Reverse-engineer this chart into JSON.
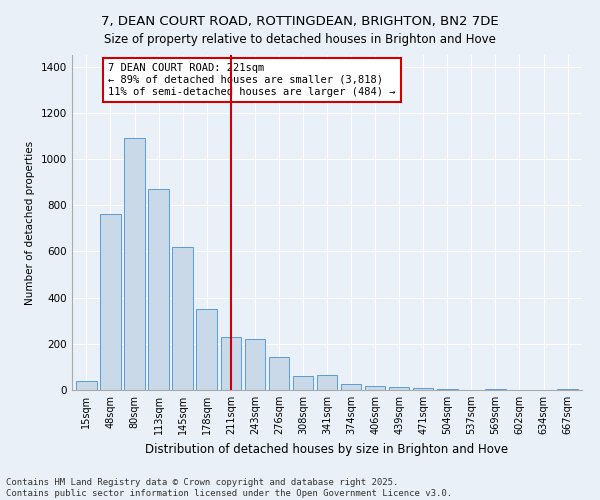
{
  "title1": "7, DEAN COURT ROAD, ROTTINGDEAN, BRIGHTON, BN2 7DE",
  "title2": "Size of property relative to detached houses in Brighton and Hove",
  "xlabel": "Distribution of detached houses by size in Brighton and Hove",
  "ylabel": "Number of detached properties",
  "categories": [
    "15sqm",
    "48sqm",
    "80sqm",
    "113sqm",
    "145sqm",
    "178sqm",
    "211sqm",
    "243sqm",
    "276sqm",
    "308sqm",
    "341sqm",
    "374sqm",
    "406sqm",
    "439sqm",
    "471sqm",
    "504sqm",
    "537sqm",
    "569sqm",
    "602sqm",
    "634sqm",
    "667sqm"
  ],
  "values": [
    40,
    760,
    1090,
    870,
    620,
    350,
    230,
    220,
    145,
    60,
    65,
    25,
    18,
    12,
    10,
    5,
    2,
    5,
    1,
    1,
    5
  ],
  "bar_color": "#c9d9e8",
  "bar_edge_color": "#5b9bd5",
  "bar_width": 0.85,
  "vline_x_index": 6,
  "vline_color": "#cc0000",
  "annotation_text": "7 DEAN COURT ROAD: 221sqm\n← 89% of detached houses are smaller (3,818)\n11% of semi-detached houses are larger (484) →",
  "annotation_box_color": "#ffffff",
  "annotation_box_edge_color": "#cc0000",
  "ylim": [
    0,
    1450
  ],
  "yticks": [
    0,
    200,
    400,
    600,
    800,
    1000,
    1200,
    1400
  ],
  "background_color": "#eaf0f8",
  "grid_color": "#ffffff",
  "footer": "Contains HM Land Registry data © Crown copyright and database right 2025.\nContains public sector information licensed under the Open Government Licence v3.0.",
  "title1_fontsize": 9.5,
  "title2_fontsize": 8.5,
  "xlabel_fontsize": 8.5,
  "ylabel_fontsize": 7.5,
  "tick_fontsize": 7,
  "annot_fontsize": 7.5,
  "footer_fontsize": 6.5
}
